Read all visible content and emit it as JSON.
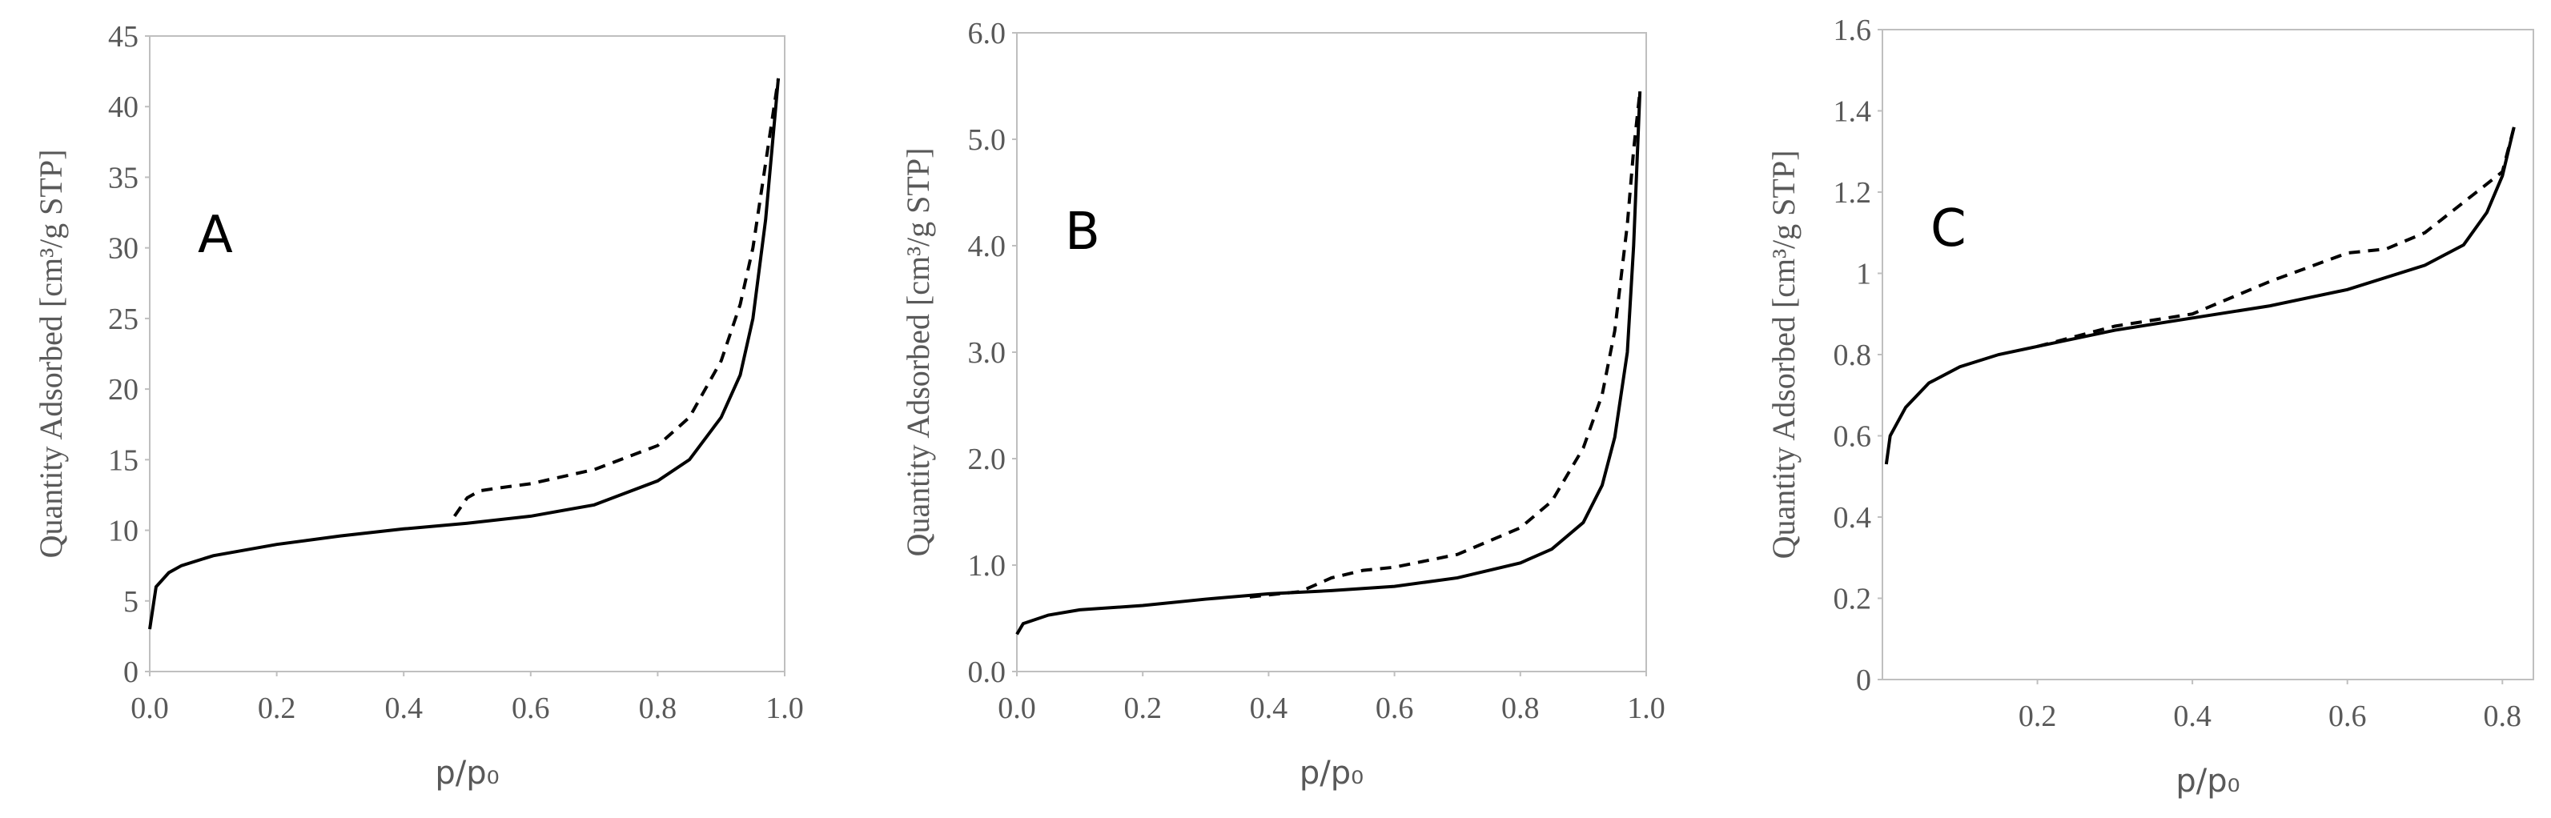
{
  "chart_data": [
    {
      "type": "line",
      "annotation": "A",
      "xlabel": "p/p₀",
      "ylabel": "Quantity Adsorbed [cm³/g STP]",
      "xlim": [
        0,
        1
      ],
      "ylim": [
        0,
        45
      ],
      "xticks": [
        {
          "value": 0,
          "label": "0.0"
        },
        0.2,
        0.4,
        0.6,
        0.8,
        {
          "value": 1,
          "label": "1.0"
        }
      ],
      "yticks": [
        0,
        5,
        10,
        15,
        20,
        25,
        30,
        35,
        40,
        45
      ],
      "series": [
        {
          "color": "#000000",
          "dashed": false,
          "x": [
            0,
            0.01,
            0.03,
            0.05,
            0.1,
            0.2,
            0.3,
            0.4,
            0.5,
            0.6,
            0.7,
            0.8,
            0.85,
            0.9,
            0.93,
            0.95,
            0.97,
            0.98,
            0.99
          ],
          "values": [
            3,
            6,
            7,
            7.5,
            8.2,
            9,
            9.6,
            10.1,
            10.5,
            11,
            11.8,
            13.5,
            15,
            18,
            21,
            25,
            32,
            37,
            42
          ]
        },
        {
          "color": "#000000",
          "dashed": true,
          "x": [
            0.48,
            0.5,
            0.52,
            0.55,
            0.6,
            0.7,
            0.8,
            0.85,
            0.9,
            0.93,
            0.95,
            0.97,
            0.98,
            0.99
          ],
          "values": [
            11,
            12.3,
            12.8,
            13,
            13.3,
            14.3,
            16,
            18,
            22,
            26,
            30,
            36,
            39,
            42
          ]
        }
      ]
    },
    {
      "type": "line",
      "annotation": "B",
      "xlabel": "p/p₀",
      "ylabel": "Quantity Adsorbed [cm³/g STP]",
      "xlim": [
        0,
        1
      ],
      "ylim": [
        0,
        6
      ],
      "xticks": [
        {
          "value": 0,
          "label": "0.0"
        },
        0.2,
        0.4,
        0.6,
        0.8,
        {
          "value": 1,
          "label": "1.0"
        }
      ],
      "yticks": [
        {
          "value": 0,
          "label": "0.0"
        },
        {
          "value": 1,
          "label": "1.0"
        },
        {
          "value": 2,
          "label": "2.0"
        },
        {
          "value": 3,
          "label": "3.0"
        },
        {
          "value": 4,
          "label": "4.0"
        },
        {
          "value": 5,
          "label": "5.0"
        },
        {
          "value": 6,
          "label": "6.0"
        }
      ],
      "series": [
        {
          "color": "#000000",
          "dashed": false,
          "x": [
            0,
            0.01,
            0.05,
            0.1,
            0.2,
            0.3,
            0.4,
            0.5,
            0.6,
            0.7,
            0.8,
            0.85,
            0.9,
            0.93,
            0.95,
            0.97,
            0.98,
            0.99
          ],
          "values": [
            0.35,
            0.45,
            0.53,
            0.58,
            0.62,
            0.68,
            0.73,
            0.76,
            0.8,
            0.88,
            1.02,
            1.15,
            1.4,
            1.75,
            2.2,
            3,
            4,
            5.45
          ]
        },
        {
          "color": "#000000",
          "dashed": true,
          "x": [
            0.37,
            0.4,
            0.45,
            0.5,
            0.55,
            0.6,
            0.7,
            0.8,
            0.85,
            0.9,
            0.93,
            0.95,
            0.97,
            0.98,
            0.99
          ],
          "values": [
            0.7,
            0.72,
            0.75,
            0.88,
            0.95,
            0.98,
            1.1,
            1.35,
            1.6,
            2.1,
            2.6,
            3.2,
            4.2,
            4.9,
            5.45
          ]
        }
      ]
    },
    {
      "type": "line",
      "annotation": "C",
      "xlabel": "p/p₀",
      "ylabel": "Quantity Adsorbed [cm³/g STP]",
      "xlim": [
        0,
        0.84
      ],
      "ylim": [
        0,
        1.6
      ],
      "xticks": [
        0.2,
        0.4,
        0.6,
        0.8
      ],
      "yticks": [
        0,
        0.2,
        0.4,
        0.6,
        0.8,
        1,
        1.2,
        1.4,
        1.6
      ],
      "series": [
        {
          "color": "#000000",
          "dashed": false,
          "x": [
            0.005,
            0.01,
            0.03,
            0.06,
            0.1,
            0.15,
            0.2,
            0.3,
            0.4,
            0.5,
            0.6,
            0.7,
            0.75,
            0.78,
            0.8,
            0.815
          ],
          "values": [
            0.53,
            0.6,
            0.67,
            0.73,
            0.77,
            0.8,
            0.82,
            0.86,
            0.89,
            0.92,
            0.96,
            1.02,
            1.07,
            1.15,
            1.24,
            1.36
          ]
        },
        {
          "color": "#000000",
          "dashed": true,
          "x": [
            0.2,
            0.3,
            0.4,
            0.5,
            0.6,
            0.65,
            0.7,
            0.8,
            0.815
          ],
          "values": [
            0.82,
            0.87,
            0.9,
            0.98,
            1.05,
            1.06,
            1.1,
            1.25,
            1.36
          ]
        }
      ]
    }
  ]
}
